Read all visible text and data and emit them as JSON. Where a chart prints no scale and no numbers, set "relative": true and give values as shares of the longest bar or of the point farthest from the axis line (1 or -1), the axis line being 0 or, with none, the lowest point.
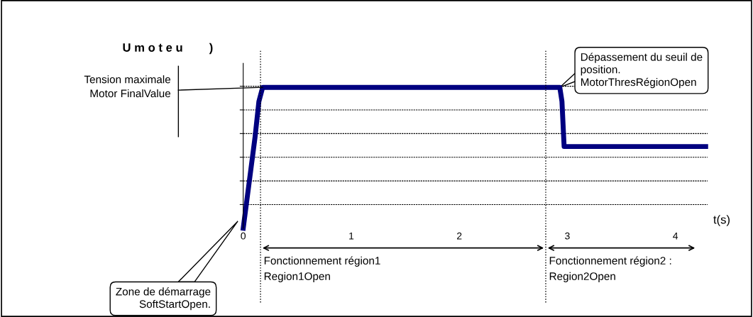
{
  "chart_data": {
    "type": "line",
    "relative": true,
    "ylabel": "U m o t e u        )",
    "xlabel": "t(s)",
    "x": [
      0,
      0.11,
      0.145,
      0.18,
      2.93,
      2.95,
      2.97,
      4.28
    ],
    "series": [
      {
        "color": "#000080",
        "values": [
          0,
          0.65,
          0.9,
          1,
          1,
          0.9,
          0.58,
          0.58
        ]
      }
    ],
    "xlim": [
      0,
      4.3
    ],
    "xticks": [
      0,
      1,
      2,
      3,
      4
    ],
    "grid": "y",
    "marker": "none",
    "line_style": "solid",
    "ref_lines": [
      {
        "axis": "x",
        "value": 0.16,
        "line_style": "dotted"
      },
      {
        "axis": "x",
        "value": 2.8,
        "line_style": "dotted"
      }
    ],
    "annotations": [
      "Tension maximale\nMotor FinalValue",
      "Dépassement du seuil de\nposition.\nMotorThresRégionOpen",
      "Zone de démarrage\nSoftStartOpen.",
      "Fonctionnement région1\nRegion1Open",
      "Fonctionnement région2 :\nRegion2Open"
    ]
  }
}
